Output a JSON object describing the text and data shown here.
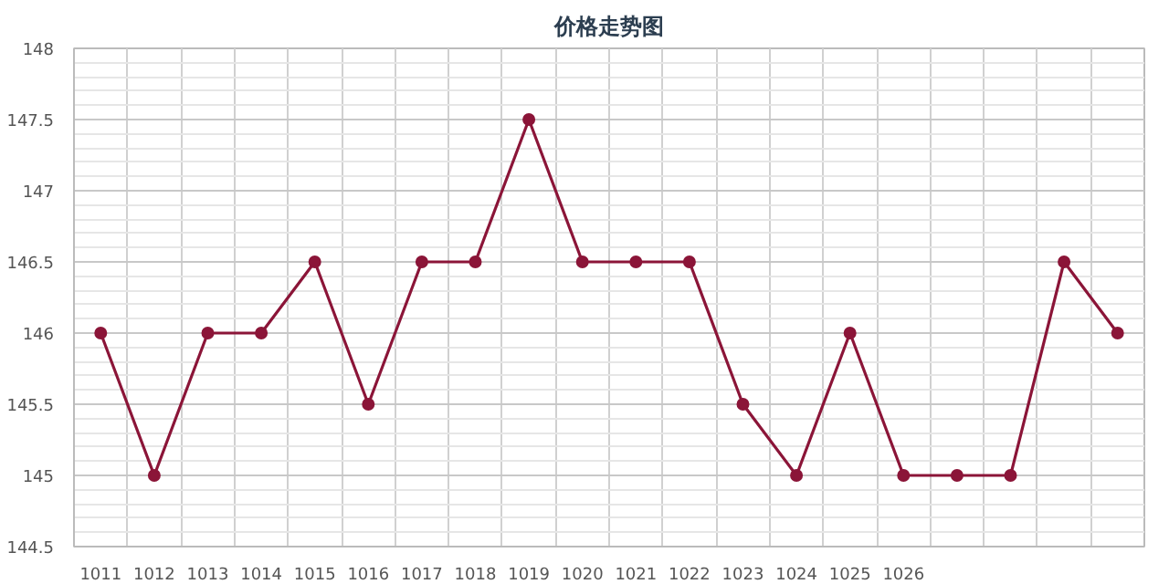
{
  "chart_data": {
    "type": "line",
    "title": "价格走势图",
    "categories": [
      "1011",
      "1012",
      "1013",
      "1014",
      "1015",
      "1016",
      "1017",
      "1018",
      "1019",
      "1020",
      "1021",
      "1022",
      "1023",
      "1024",
      "1025",
      "1026",
      null,
      null,
      null,
      null
    ],
    "series": [
      {
        "color": "#8b1538",
        "values": [
          146,
          145,
          146,
          146,
          146.5,
          145.5,
          146.5,
          146.5,
          147.5,
          146.5,
          146.5,
          146.5,
          145.5,
          145,
          146,
          145,
          145,
          145,
          146.5,
          146
        ]
      }
    ],
    "ylim": [
      144.5,
      148
    ],
    "yticks": [
      144.5,
      145,
      145.5,
      146,
      146.5,
      147,
      147.5,
      148
    ],
    "grid": true,
    "marker": "circle"
  }
}
